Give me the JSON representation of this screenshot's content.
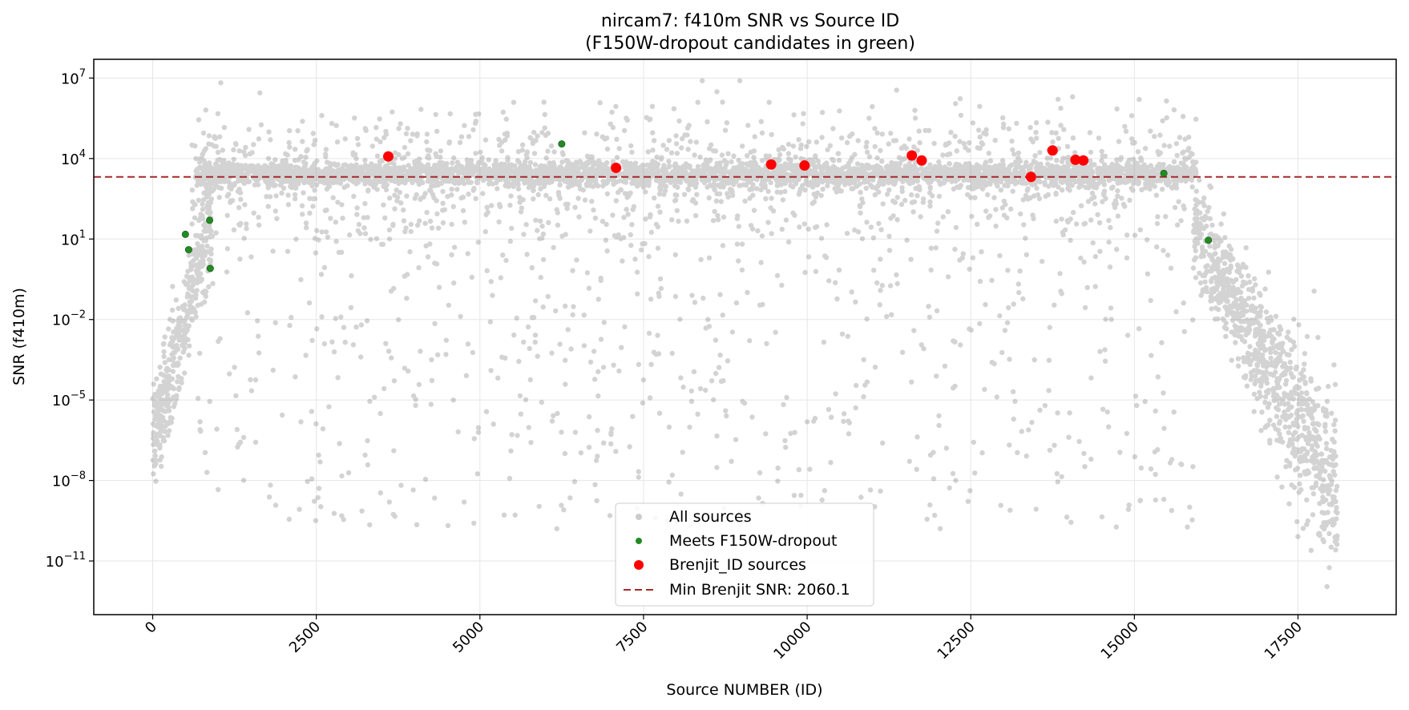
{
  "chart_data": {
    "type": "scatter",
    "title": "nircam7: f410m SNR vs Source ID",
    "subtitle": "(F150W-dropout candidates in green)",
    "xlabel": "Source NUMBER (ID)",
    "ylabel": "SNR (f410m)",
    "x_scale": "linear",
    "y_scale": "log",
    "xlim": [
      -900,
      19000
    ],
    "ylim": [
      1e-13,
      50000000.0
    ],
    "x_ticks": [
      0,
      2500,
      5000,
      7500,
      10000,
      12500,
      15000,
      17500
    ],
    "x_tick_labels": [
      "0",
      "2500",
      "5000",
      "7500",
      "10000",
      "12500",
      "15000",
      "17500"
    ],
    "y_ticks_exp": [
      -11,
      -8,
      -5,
      -2,
      1,
      4,
      7
    ],
    "y_tick_base": "10",
    "grid": true,
    "legend_position": "bottom-center",
    "reference_line": {
      "y": 2060.1,
      "label": "Min Brenjit SNR: 2060.1",
      "color": "#a52a2a",
      "style": "dashed"
    },
    "series": [
      {
        "name": "All sources",
        "color": "#808080",
        "alpha": 0.35,
        "approx_count": 18100,
        "description_of_distribution": "dense band at SNR ~1e3–1e4 for IDs 600–15900 with scatter up to ~1e7 and down to ~1e-10; rising ramp IDs 0–900 from ~1e-7 to ~1e3; falling tail IDs 15900–18100 from ~1e2 down to ~1e-12"
      },
      {
        "name": "Meets F150W-dropout",
        "color": "#228b22",
        "points": [
          {
            "x": 500,
            "y": 15
          },
          {
            "x": 550,
            "y": 4
          },
          {
            "x": 870,
            "y": 50
          },
          {
            "x": 880,
            "y": 0.8
          },
          {
            "x": 6250,
            "y": 35000
          },
          {
            "x": 15450,
            "y": 2800
          },
          {
            "x": 16130,
            "y": 9
          }
        ]
      },
      {
        "name": "Brenjit_ID sources",
        "color": "#ff0000",
        "points": [
          {
            "x": 3600,
            "y": 12000
          },
          {
            "x": 7080,
            "y": 4500
          },
          {
            "x": 9450,
            "y": 6000
          },
          {
            "x": 9960,
            "y": 5500
          },
          {
            "x": 11600,
            "y": 13000
          },
          {
            "x": 11750,
            "y": 8500
          },
          {
            "x": 13420,
            "y": 2060.1
          },
          {
            "x": 13750,
            "y": 20000
          },
          {
            "x": 14100,
            "y": 9000
          },
          {
            "x": 14220,
            "y": 8500
          }
        ]
      }
    ],
    "legend": [
      {
        "label": "All sources",
        "marker": "circle",
        "color": "#808080"
      },
      {
        "label": "Meets F150W-dropout",
        "marker": "circle",
        "color": "#228b22"
      },
      {
        "label": "Brenjit_ID sources",
        "marker": "circle",
        "color": "#ff0000"
      },
      {
        "label": "Min Brenjit SNR: 2060.1",
        "marker": "dashed-line",
        "color": "#a52a2a"
      }
    ]
  }
}
